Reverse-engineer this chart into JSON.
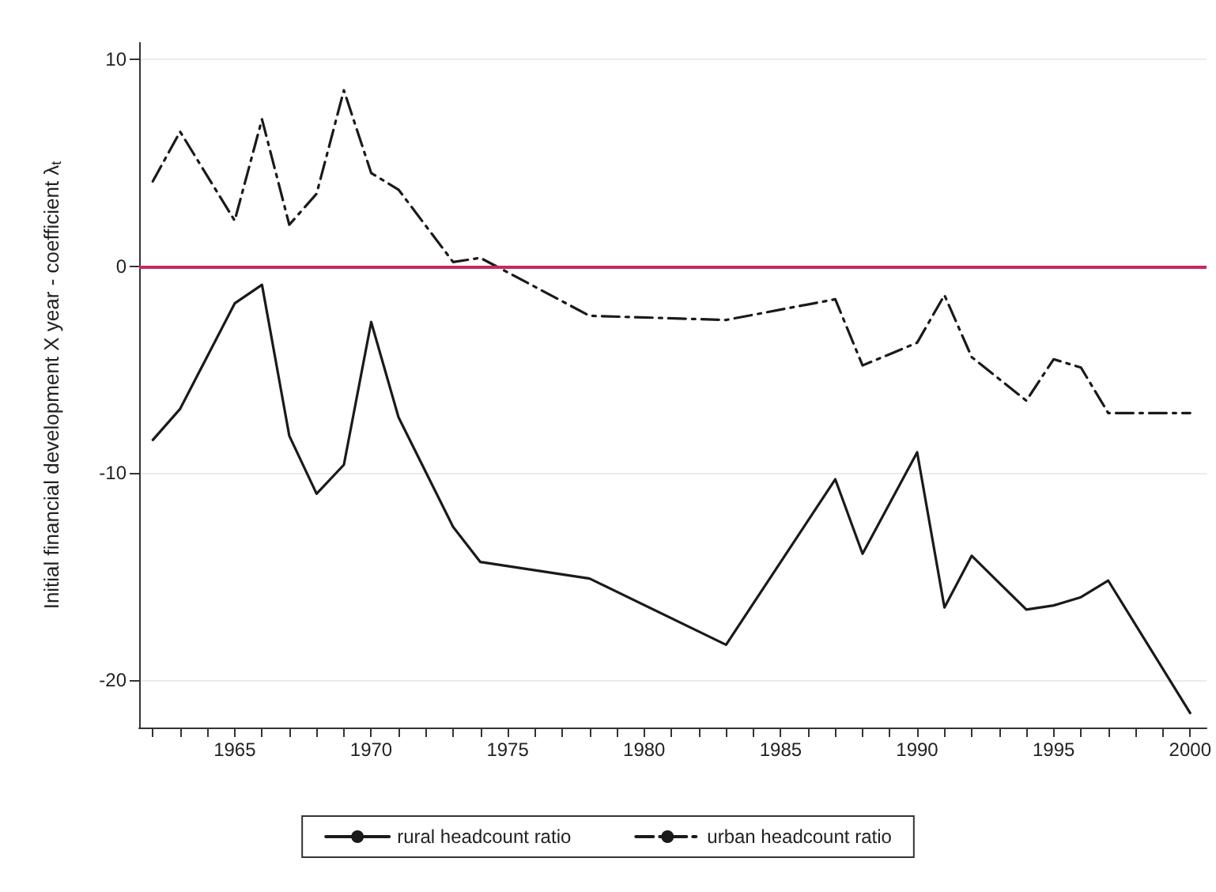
{
  "chart_data": {
    "type": "line",
    "ylabel": "Initial financial development X year - coefficient λ$_{t}$",
    "xlim": [
      1961.5,
      2000.6
    ],
    "xticks": [
      {
        "value": 1962,
        "label": null
      },
      {
        "value": 1963,
        "label": null
      },
      {
        "value": 1964,
        "label": null
      },
      {
        "value": 1965,
        "label": "1965"
      },
      {
        "value": 1966,
        "label": null
      },
      {
        "value": 1967,
        "label": null
      },
      {
        "value": 1968,
        "label": null
      },
      {
        "value": 1969,
        "label": null
      },
      {
        "value": 1970,
        "label": "1970"
      },
      {
        "value": 1971,
        "label": null
      },
      {
        "value": 1972,
        "label": null
      },
      {
        "value": 1973,
        "label": null
      },
      {
        "value": 1974,
        "label": null
      },
      {
        "value": 1975,
        "label": "1975"
      },
      {
        "value": 1976,
        "label": null
      },
      {
        "value": 1977,
        "label": null
      },
      {
        "value": 1978,
        "label": null
      },
      {
        "value": 1979,
        "label": null
      },
      {
        "value": 1980,
        "label": "1980"
      },
      {
        "value": 1981,
        "label": null
      },
      {
        "value": 1982,
        "label": null
      },
      {
        "value": 1983,
        "label": null
      },
      {
        "value": 1984,
        "label": null
      },
      {
        "value": 1985,
        "label": "1985"
      },
      {
        "value": 1986,
        "label": null
      },
      {
        "value": 1987,
        "label": null
      },
      {
        "value": 1988,
        "label": null
      },
      {
        "value": 1989,
        "label": null
      },
      {
        "value": 1990,
        "label": "1990"
      },
      {
        "value": 1991,
        "label": null
      },
      {
        "value": 1992,
        "label": null
      },
      {
        "value": 1993,
        "label": null
      },
      {
        "value": 1994,
        "label": null
      },
      {
        "value": 1995,
        "label": "1995"
      },
      {
        "value": 1996,
        "label": null
      },
      {
        "value": 1997,
        "label": null
      },
      {
        "value": 1998,
        "label": null
      },
      {
        "value": 1999,
        "label": null
      },
      {
        "value": 2000,
        "label": "2000"
      }
    ],
    "ylim": [
      -22.3,
      10.8
    ],
    "yticks": [
      -20,
      -10,
      0,
      10
    ],
    "grid": "y",
    "legend": "bottom",
    "marker": "none",
    "ref_lines": [
      {
        "axis": "y",
        "value": 0,
        "label": null,
        "color": "#c8285a"
      }
    ],
    "series": [
      {
        "name": "rural headcount ratio",
        "color": "#1a1a1a",
        "line_style": "solid",
        "x": [
          1962,
          1963,
          1965,
          1966,
          1967,
          1968,
          1969,
          1970,
          1971,
          1973,
          1974,
          1978,
          1983,
          1987,
          1988,
          1990,
          1991,
          1992,
          1994,
          1995,
          1996,
          1997,
          2000
        ],
        "values": [
          -8.4,
          -6.9,
          -1.8,
          -0.9,
          -8.2,
          -11.0,
          -9.6,
          -2.7,
          -7.3,
          -12.6,
          -14.3,
          -15.1,
          -18.3,
          -10.3,
          -13.9,
          -9.0,
          -16.5,
          -14.0,
          -16.6,
          -16.4,
          -16.0,
          -15.2,
          -21.6
        ]
      },
      {
        "name": "urban headcount ratio",
        "color": "#1a1a1a",
        "line_style": "dashed",
        "x": [
          1962,
          1963,
          1965,
          1966,
          1967,
          1968,
          1969,
          1970,
          1971,
          1973,
          1974,
          1978,
          1983,
          1987,
          1988,
          1990,
          1991,
          1992,
          1994,
          1995,
          1996,
          1997,
          2000
        ],
        "values": [
          4.1,
          6.5,
          2.2,
          7.1,
          2.0,
          3.5,
          8.5,
          4.5,
          3.7,
          0.2,
          0.4,
          -2.4,
          -2.6,
          -1.6,
          -4.8,
          -3.7,
          -1.4,
          -4.4,
          -6.5,
          -4.5,
          -4.9,
          -7.1,
          -7.1
        ]
      }
    ]
  }
}
